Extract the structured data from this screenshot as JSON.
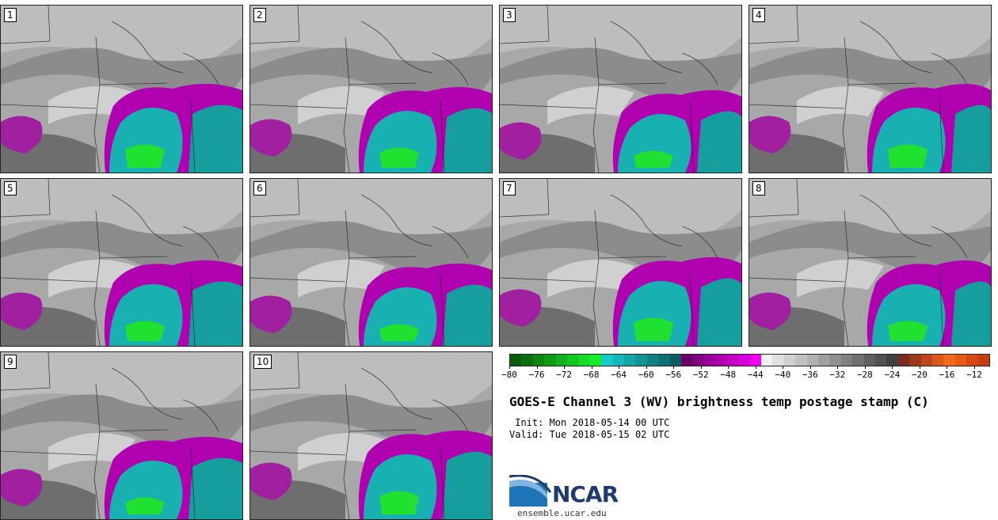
{
  "panels": [
    "1",
    "2",
    "3",
    "4",
    "5",
    "6",
    "7",
    "8",
    "9",
    "10"
  ],
  "colorbar": {
    "colors": [
      "#0a5c0a",
      "#0c7010",
      "#0e8414",
      "#109a18",
      "#12b01c",
      "#14c620",
      "#16dc24",
      "#18ec28",
      "#18c9c9",
      "#16b8b8",
      "#14a6a6",
      "#129494",
      "#108282",
      "#0e7070",
      "#0c5e5e",
      "#6a006a",
      "#800080",
      "#960096",
      "#ac00ac",
      "#c200c2",
      "#d800d8",
      "#ee00ee",
      "#f0f0f0",
      "#e0e0e0",
      "#d0d0d0",
      "#c0c0c0",
      "#b0b0b0",
      "#a0a0a0",
      "#909090",
      "#808080",
      "#707070",
      "#606060",
      "#505050",
      "#404040",
      "#7a2e1c",
      "#9a3a1c",
      "#ba481c",
      "#da581c",
      "#f06a1c",
      "#e85818",
      "#d84a14",
      "#c83c10"
    ],
    "ticks": [
      "−80",
      "−76",
      "−72",
      "−68",
      "−64",
      "−60",
      "−56",
      "−52",
      "−48",
      "−44",
      "−40",
      "−36",
      "−32",
      "−28",
      "−24",
      "−20",
      "−16",
      "−12"
    ]
  },
  "title": "GOES-E Channel 3 (WV) brightness temp postage stamp (C)",
  "init": " Init: Mon 2018-05-14 00 UTC",
  "valid": "Valid: Tue 2018-05-15 02 UTC",
  "logo_text": "NCAR",
  "url": "ensemble.ucar.edu"
}
